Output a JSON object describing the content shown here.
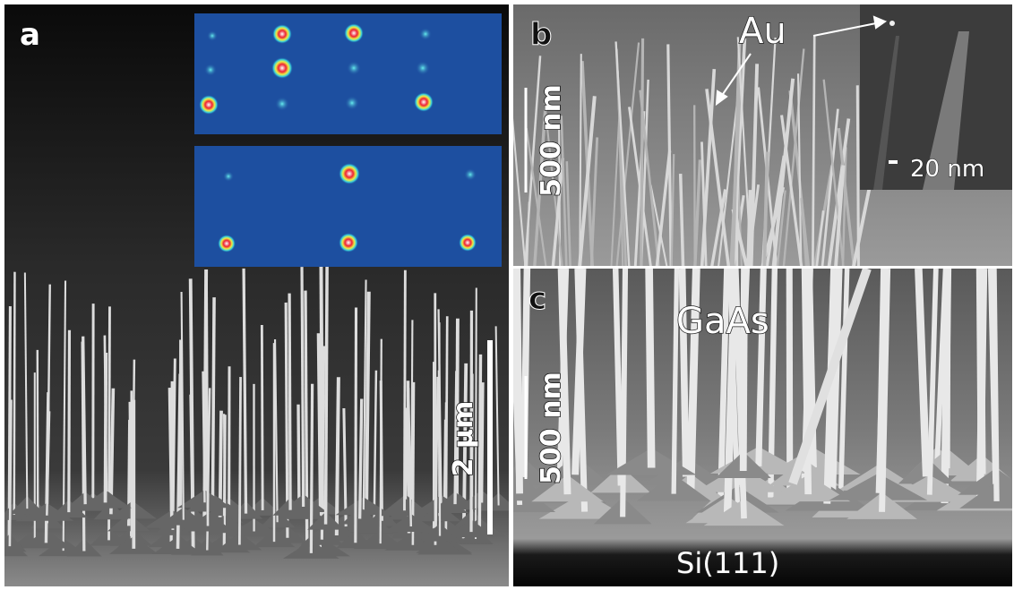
{
  "panels": [
    {
      "label": "a",
      "scale_bar": "2 µm"
    },
    {
      "label": "b",
      "scale_bar": "500 nm",
      "annotation": "Au",
      "inset_scale_bar": "20 nm"
    },
    {
      "label": "c",
      "scale_bar": "500 nm",
      "annotation": "GaAs",
      "substrate": "Si(111)"
    }
  ]
}
